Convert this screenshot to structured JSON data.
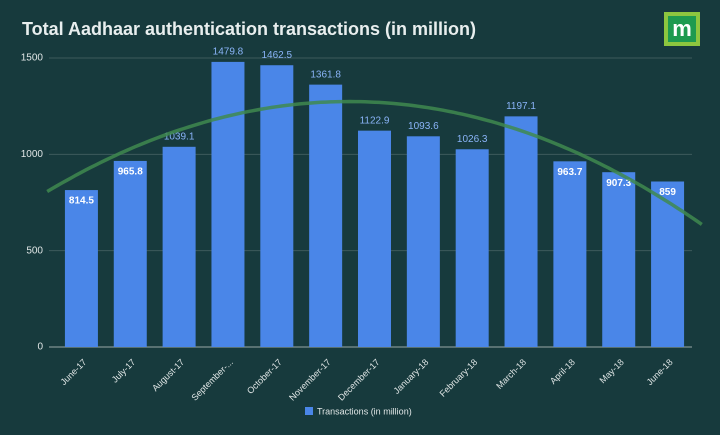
{
  "chart_data": {
    "type": "bar",
    "title": "Total Aadhaar authentication transactions (in million)",
    "logo": "m",
    "categories": [
      "June-17",
      "July-17",
      "August-17",
      "September-...",
      "October-17",
      "November-17",
      "December-17",
      "January-18",
      "February-18",
      "March-18",
      "April-18",
      "May-18",
      "June-18"
    ],
    "series": [
      {
        "name": "Transactions (in million)",
        "color": "#4a86e8",
        "values": [
          814.5,
          965.8,
          1039.1,
          1479.8,
          1462.5,
          1361.8,
          1122.9,
          1093.6,
          1026.3,
          1197.1,
          963.7,
          907.3,
          859
        ]
      }
    ],
    "ylim": [
      0,
      1500
    ],
    "yticks": [
      0,
      500,
      1000,
      1500
    ],
    "grid": true,
    "legend": "bottom",
    "trendline": "polynomial"
  }
}
